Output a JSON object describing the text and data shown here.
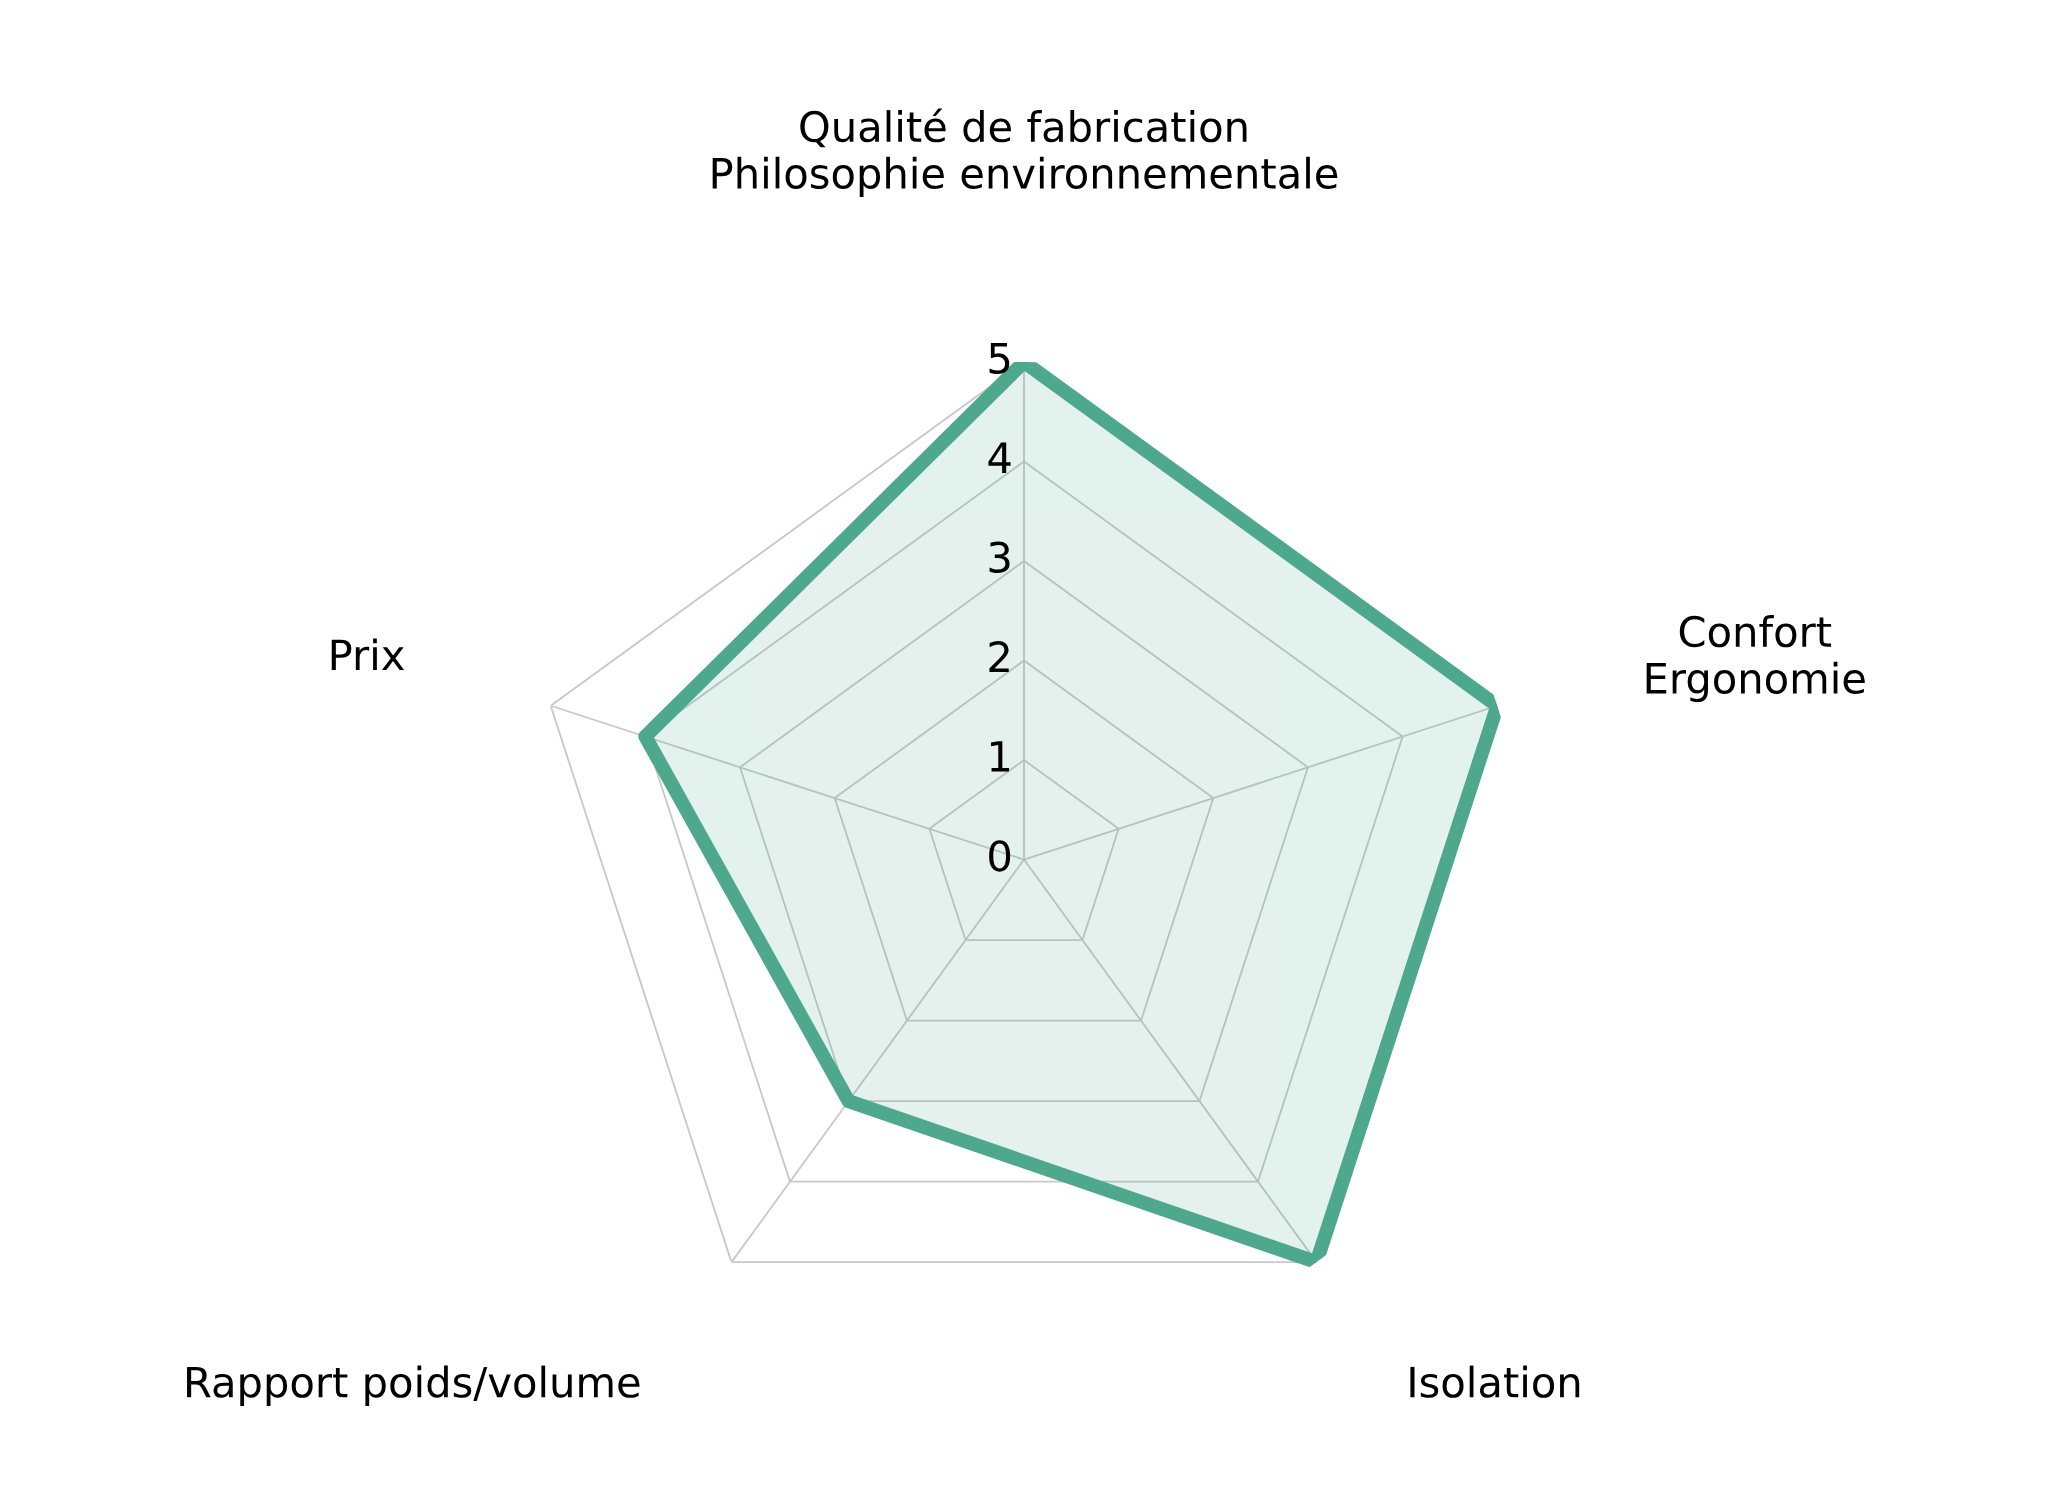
{
  "chart_data": {
    "type": "radar",
    "categories": [
      "Qualité de fabrication\nPhilosophie environnementale",
      "Confort\nErgonomie",
      "Isolation",
      "Rapport poids/volume",
      "Prix"
    ],
    "series": [
      {
        "color": "#4ea88c",
        "values": [
          5,
          5,
          5,
          3,
          4
        ]
      }
    ],
    "ylim": [
      0,
      5
    ],
    "yticks": [
      0,
      1,
      2,
      3,
      4,
      5
    ],
    "grid": true
  }
}
